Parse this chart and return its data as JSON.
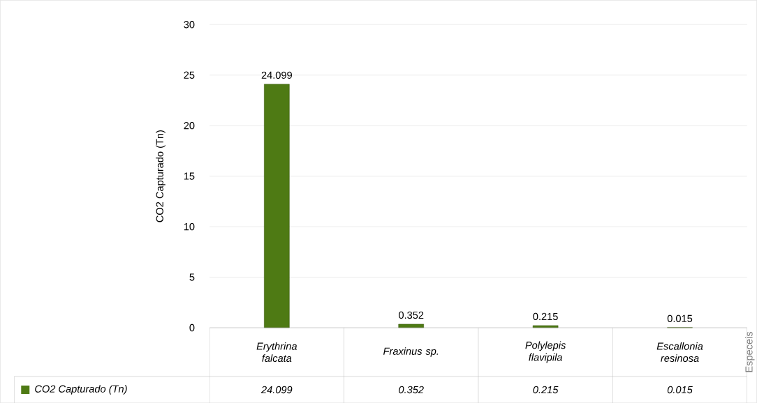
{
  "chart_data": {
    "type": "bar",
    "ylabel": "CO2 Capturado (Tn)",
    "annotations": [
      "Especeis"
    ],
    "categories": [
      "Erythrina falcata",
      "Fraxinus sp.",
      "Polylepis flavipila",
      "Escallonia resinosa"
    ],
    "series": [
      {
        "name": "CO2 Capturado (Tn)",
        "color": "#4e7a14",
        "values": [
          24.099,
          0.352,
          0.215,
          0.015
        ],
        "value_labels": [
          "24.099",
          "0.352",
          "0.215",
          "0.015"
        ]
      }
    ],
    "ylim": [
      0,
      30
    ],
    "yticks": [
      0,
      5,
      10,
      15,
      20,
      25,
      30
    ],
    "grid": "y",
    "legend": "bottom",
    "data_labels": true
  }
}
